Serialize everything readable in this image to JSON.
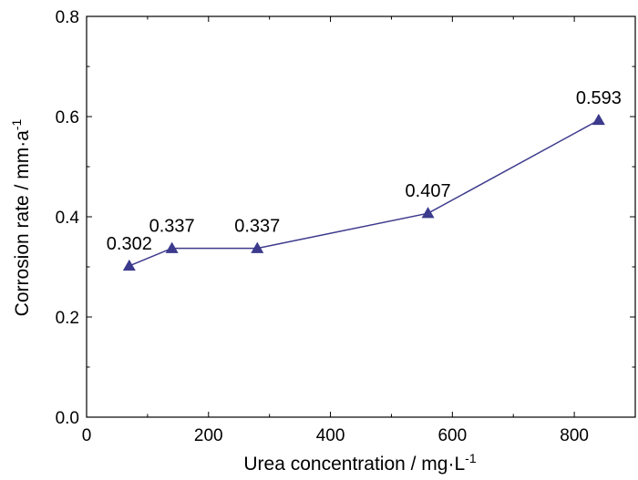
{
  "chart_data": {
    "type": "line",
    "title": "",
    "xlabel": "Urea concentration / mg·L",
    "xlabel_superscript": "-1",
    "ylabel": "Corrosion rate / mm·a",
    "ylabel_superscript": "-1",
    "xlim": [
      0,
      900
    ],
    "ylim": [
      0.0,
      0.8
    ],
    "x_ticks": [
      0,
      200,
      400,
      600,
      800
    ],
    "x_tick_labels": [
      "0",
      "200",
      "400",
      "600",
      "800"
    ],
    "y_ticks": [
      0.0,
      0.2,
      0.4,
      0.6,
      0.8
    ],
    "y_tick_labels": [
      "0.0",
      "0.2",
      "0.4",
      "0.6",
      "0.8"
    ],
    "grid": false,
    "series": [
      {
        "marker": "triangle",
        "color": "#3c3a8c",
        "x": [
          70,
          140,
          280,
          560,
          840
        ],
        "y": [
          0.302,
          0.337,
          0.337,
          0.407,
          0.593
        ],
        "labels": [
          "0.302",
          "0.337",
          "0.337",
          "0.407",
          "0.593"
        ]
      }
    ]
  }
}
